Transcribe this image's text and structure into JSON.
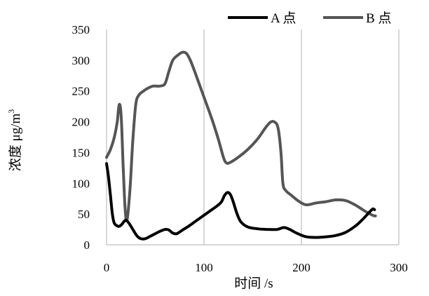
{
  "chart_data": {
    "type": "line",
    "title": "",
    "xlabel": "时间 /s",
    "ylabel": "浓度 μg/m",
    "ylabel_superscript": "3",
    "xlim": [
      0,
      300
    ],
    "ylim": [
      0,
      350
    ],
    "x_ticks": [
      0,
      100,
      200,
      300
    ],
    "y_ticks": [
      0,
      50,
      100,
      150,
      200,
      250,
      300,
      350
    ],
    "grid": "vertical",
    "legend_position": "top-right",
    "series": [
      {
        "name": "A 点",
        "color": "#000000",
        "points": [
          [
            0,
            132
          ],
          [
            2,
            110
          ],
          [
            4,
            80
          ],
          [
            6,
            50
          ],
          [
            8,
            35
          ],
          [
            12,
            30
          ],
          [
            15,
            32
          ],
          [
            18,
            38
          ],
          [
            20,
            40
          ],
          [
            23,
            35
          ],
          [
            27,
            25
          ],
          [
            31,
            15
          ],
          [
            35,
            10
          ],
          [
            40,
            10
          ],
          [
            45,
            14
          ],
          [
            50,
            18
          ],
          [
            55,
            22
          ],
          [
            60,
            25
          ],
          [
            64,
            24
          ],
          [
            68,
            19
          ],
          [
            72,
            18
          ],
          [
            78,
            24
          ],
          [
            85,
            31
          ],
          [
            92,
            39
          ],
          [
            100,
            48
          ],
          [
            108,
            57
          ],
          [
            114,
            64
          ],
          [
            118,
            70
          ],
          [
            121,
            80
          ],
          [
            124,
            85
          ],
          [
            127,
            82
          ],
          [
            130,
            70
          ],
          [
            134,
            50
          ],
          [
            138,
            37
          ],
          [
            145,
            29
          ],
          [
            155,
            26
          ],
          [
            165,
            25
          ],
          [
            175,
            25
          ],
          [
            182,
            28
          ],
          [
            188,
            25
          ],
          [
            195,
            19
          ],
          [
            205,
            13
          ],
          [
            215,
            12
          ],
          [
            225,
            13
          ],
          [
            235,
            15
          ],
          [
            245,
            20
          ],
          [
            255,
            30
          ],
          [
            262,
            40
          ],
          [
            268,
            50
          ],
          [
            273,
            58
          ],
          [
            275,
            57
          ]
        ]
      },
      {
        "name": "B 点",
        "color": "#555555",
        "points": [
          [
            0,
            142
          ],
          [
            4,
            155
          ],
          [
            8,
            175
          ],
          [
            11,
            200
          ],
          [
            13,
            228
          ],
          [
            15,
            210
          ],
          [
            17,
            130
          ],
          [
            19,
            60
          ],
          [
            21,
            40
          ],
          [
            24,
            90
          ],
          [
            27,
            170
          ],
          [
            30,
            228
          ],
          [
            33,
            243
          ],
          [
            38,
            250
          ],
          [
            43,
            255
          ],
          [
            48,
            258
          ],
          [
            55,
            258
          ],
          [
            60,
            262
          ],
          [
            64,
            282
          ],
          [
            68,
            300
          ],
          [
            73,
            308
          ],
          [
            78,
            313
          ],
          [
            82,
            311
          ],
          [
            86,
            300
          ],
          [
            92,
            275
          ],
          [
            100,
            240
          ],
          [
            108,
            205
          ],
          [
            115,
            170
          ],
          [
            120,
            142
          ],
          [
            123,
            133
          ],
          [
            127,
            134
          ],
          [
            135,
            142
          ],
          [
            145,
            155
          ],
          [
            155,
            172
          ],
          [
            163,
            190
          ],
          [
            168,
            199
          ],
          [
            172,
            200
          ],
          [
            176,
            190
          ],
          [
            179,
            150
          ],
          [
            181,
            100
          ],
          [
            184,
            88
          ],
          [
            190,
            80
          ],
          [
            198,
            70
          ],
          [
            205,
            65
          ],
          [
            215,
            68
          ],
          [
            225,
            70
          ],
          [
            235,
            73
          ],
          [
            245,
            72
          ],
          [
            255,
            65
          ],
          [
            265,
            55
          ],
          [
            273,
            48
          ],
          [
            276,
            47
          ]
        ]
      }
    ]
  }
}
